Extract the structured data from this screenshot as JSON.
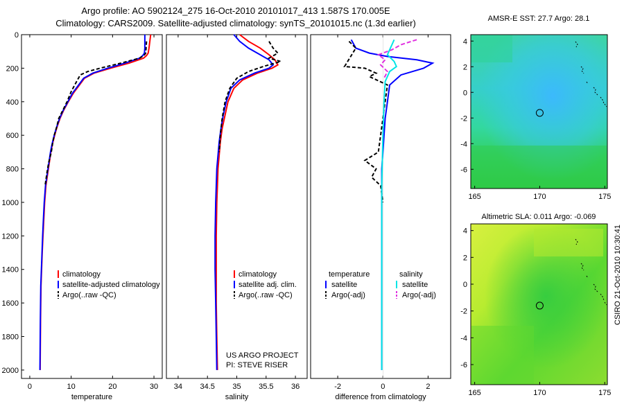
{
  "header": {
    "title_line1": "Argo profile: AO 5902124_275 16-Oct-2010 20101017_413 1.587S 170.005E",
    "title_line2": "Climatology: CARS2009. Satellite-adjusted climatology: synTS_20101015.nc (1.3d earlier)"
  },
  "colors": {
    "climatology": "#ff0000",
    "satellite": "#0000ff",
    "argo": "#000000",
    "satellite_salinity": "#00e5e5",
    "argo_salinity": "#e030e0"
  },
  "chart_data": [
    {
      "type": "line",
      "id": "temperature",
      "xlabel": "temperature",
      "ylabel": "",
      "xlim": [
        -2,
        32
      ],
      "ylim": [
        2050,
        0
      ],
      "xticks": [
        0,
        10,
        20,
        30
      ],
      "yticks": [
        0,
        200,
        400,
        600,
        800,
        1000,
        1200,
        1400,
        1600,
        1800,
        2000
      ],
      "series": [
        {
          "name": "climatology",
          "color": "#ff0000",
          "dash": "",
          "x": [
            29.2,
            29.0,
            28.8,
            28.6,
            28.2,
            27.5,
            24.0,
            19.5,
            15.5,
            13.2,
            12.0,
            10.5,
            9.3,
            8.2,
            7.3,
            6.6,
            6.0,
            5.5,
            5.1,
            4.8,
            4.5,
            4.2,
            3.9,
            3.6,
            3.4,
            3.2,
            3.0,
            2.85,
            2.7,
            2.6,
            2.5
          ],
          "y": [
            0,
            40,
            80,
            110,
            125,
            140,
            170,
            200,
            230,
            260,
            300,
            350,
            400,
            450,
            500,
            550,
            600,
            650,
            700,
            750,
            800,
            850,
            900,
            1000,
            1100,
            1200,
            1300,
            1400,
            1500,
            1700,
            2000
          ]
        },
        {
          "name": "satellite-adjusted climatology",
          "color": "#0000ff",
          "dash": "",
          "x": [
            27.8,
            27.8,
            27.8,
            27.7,
            27.3,
            26.5,
            23.0,
            18.8,
            15.2,
            13.0,
            11.8,
            10.3,
            9.2,
            8.1,
            7.2,
            6.5,
            5.9,
            5.4,
            5.0,
            4.7,
            4.4,
            4.1,
            3.8,
            3.5,
            3.3,
            3.1,
            2.95,
            2.8,
            2.65,
            2.55,
            2.45
          ],
          "y": [
            0,
            40,
            80,
            110,
            125,
            140,
            170,
            200,
            230,
            260,
            300,
            350,
            400,
            450,
            500,
            550,
            600,
            650,
            700,
            750,
            800,
            850,
            900,
            1000,
            1100,
            1200,
            1300,
            1400,
            1500,
            1700,
            2000
          ]
        },
        {
          "name": "Argo(..raw -QC)",
          "color": "#000000",
          "dash": "5,3",
          "x": [
            28.2,
            28.1,
            28.0,
            27.6,
            26.5,
            22.0,
            17.0,
            14.0,
            12.2,
            11.3,
            10.0,
            9.0,
            8.0,
            7.0,
            6.5,
            5.9,
            5.5,
            5.2,
            4.9,
            4.6,
            4.3,
            4.0,
            3.7
          ],
          "y": [
            40,
            80,
            110,
            125,
            140,
            170,
            200,
            220,
            240,
            280,
            340,
            400,
            450,
            500,
            550,
            600,
            650,
            700,
            730,
            760,
            800,
            850,
            900
          ]
        }
      ],
      "legend": [
        "climatology",
        "satellite-adjusted climatology",
        "Argo(..raw -QC)"
      ],
      "legend_position": "lower-middle"
    },
    {
      "type": "line",
      "id": "salinity",
      "xlabel": "salinity",
      "ylabel": "",
      "xlim": [
        33.8,
        36.2
      ],
      "ylim": [
        2050,
        0
      ],
      "xticks": [
        34,
        34.5,
        35,
        35.5,
        36
      ],
      "yticks": [],
      "series": [
        {
          "name": "climatology",
          "color": "#ff0000",
          "dash": "",
          "x": [
            35.05,
            35.2,
            35.4,
            35.55,
            35.65,
            35.7,
            35.6,
            35.35,
            35.1,
            34.95,
            34.85,
            34.8,
            34.75,
            34.72,
            34.7,
            34.68,
            34.67,
            34.66,
            34.65,
            34.65,
            34.65,
            34.66,
            34.67
          ],
          "y": [
            0,
            40,
            80,
            120,
            150,
            180,
            200,
            230,
            270,
            320,
            400,
            480,
            560,
            640,
            720,
            800,
            900,
            1000,
            1200,
            1400,
            1600,
            1800,
            2000
          ]
        },
        {
          "name": "satellite adj. clim.",
          "color": "#0000ff",
          "dash": "",
          "x": [
            34.95,
            35.05,
            35.2,
            35.4,
            35.55,
            35.62,
            35.55,
            35.3,
            35.05,
            34.9,
            34.82,
            34.77,
            34.73,
            34.7,
            34.68,
            34.66,
            34.65,
            34.64,
            34.63,
            34.63,
            34.64,
            34.65,
            34.66
          ],
          "y": [
            0,
            40,
            80,
            120,
            150,
            180,
            200,
            230,
            270,
            320,
            400,
            480,
            560,
            640,
            720,
            800,
            900,
            1000,
            1200,
            1400,
            1600,
            1800,
            2000
          ]
        },
        {
          "name": "Argo(..raw -QC)",
          "color": "#000000",
          "dash": "5,3",
          "x": [
            35.55,
            35.62,
            35.7,
            35.55,
            35.75,
            35.45,
            35.2,
            35.0,
            34.88,
            34.8,
            34.75,
            34.72,
            34.7
          ],
          "y": [
            40,
            80,
            110,
            140,
            160,
            190,
            220,
            260,
            320,
            400,
            500,
            600,
            700
          ]
        }
      ],
      "legend": [
        "climatology",
        "satellite adj. clim.",
        "Argo(..raw -QC)"
      ],
      "legend_position": "lower-middle",
      "annotation": [
        "US ARGO PROJECT",
        "PI: STEVE RISER"
      ]
    },
    {
      "type": "line",
      "id": "difference",
      "xlabel": "difference from climatology",
      "ylabel": "",
      "xlim": [
        -3.2,
        3.0
      ],
      "ylim": [
        2050,
        0
      ],
      "xticks": [
        -2,
        0,
        2
      ],
      "yticks": [],
      "series": [
        {
          "name": "temperature satellite",
          "color": "#0000ff",
          "dash": "",
          "x": [
            -1.4,
            -1.2,
            -0.6,
            0.2,
            1.5,
            2.2,
            1.8,
            0.8,
            0.3,
            0.2,
            0.1,
            0.05,
            0.0,
            -0.05,
            -0.05,
            -0.05,
            -0.05,
            -0.05,
            -0.05
          ],
          "y": [
            30,
            80,
            110,
            130,
            150,
            170,
            200,
            240,
            300,
            400,
            500,
            600,
            700,
            800,
            1000,
            1200,
            1500,
            1800,
            2000
          ]
        },
        {
          "name": "temperature Argo(-adj)",
          "color": "#000000",
          "dash": "5,3",
          "x": [
            -1.5,
            -1.2,
            -1.7,
            -0.8,
            -0.3,
            -0.6,
            0.2,
            0.1,
            -0.2,
            -0.8,
            -0.3,
            -0.5,
            -0.1,
            0.0
          ],
          "y": [
            40,
            80,
            190,
            200,
            230,
            250,
            300,
            400,
            700,
            750,
            800,
            850,
            900,
            1000
          ]
        },
        {
          "name": "salinity satellite",
          "color": "#00e5e5",
          "dash": "",
          "x": [
            0.5,
            0.4,
            0.3,
            0.2,
            0.5,
            0.6,
            0.3,
            0.1,
            0.05,
            0.0,
            -0.05,
            -0.05,
            -0.05
          ],
          "y": [
            30,
            60,
            90,
            120,
            160,
            190,
            220,
            280,
            400,
            600,
            900,
            1500,
            2000
          ]
        },
        {
          "name": "salinity Argo(-adj)",
          "color": "#e030e0",
          "dash": "6,3",
          "x": [
            1.5,
            0.8,
            0.4,
            -0.2,
            0.1,
            -0.1,
            0.2,
            0.05
          ],
          "y": [
            30,
            60,
            90,
            120,
            150,
            180,
            220,
            260
          ]
        }
      ],
      "legend": [
        "temperature",
        "satellite",
        "Argo(-adj)",
        "salinity",
        "satellite",
        "Argo(-adj)"
      ],
      "legend_position": "lower-middle"
    },
    {
      "type": "heatmap",
      "id": "sst",
      "title": "AMSR-E SST: 27.7 Argo: 28.1",
      "xlim": [
        164.7,
        175.2
      ],
      "ylim": [
        -7.5,
        4.5
      ],
      "xticks": [
        165,
        170,
        175
      ],
      "yticks": [
        4,
        2,
        0,
        -2,
        -4,
        -6
      ],
      "marker": {
        "x": 170.0,
        "y": -1.6
      }
    },
    {
      "type": "heatmap",
      "id": "sla",
      "title": "Altimetric SLA: 0.011 Argo: -0.069",
      "xlim": [
        164.7,
        175.2
      ],
      "ylim": [
        -7.5,
        4.5
      ],
      "xticks": [
        165,
        170,
        175
      ],
      "yticks": [
        4,
        2,
        0,
        -2,
        -4,
        -6
      ],
      "marker": {
        "x": 170.0,
        "y": -1.6
      }
    }
  ],
  "footer": {
    "stamp": "CSIRO 21-Oct-2010 10:30:41"
  }
}
